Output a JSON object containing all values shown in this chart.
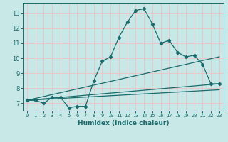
{
  "xlabel": "Humidex (Indice chaleur)",
  "ylabel": "",
  "xlim": [
    -0.5,
    23.5
  ],
  "ylim": [
    6.5,
    13.7
  ],
  "yticks": [
    7,
    8,
    9,
    10,
    11,
    12,
    13
  ],
  "xticks": [
    0,
    1,
    2,
    3,
    4,
    5,
    6,
    7,
    8,
    9,
    10,
    11,
    12,
    13,
    14,
    15,
    16,
    17,
    18,
    19,
    20,
    21,
    22,
    23
  ],
  "bg_color": "#c8e8e8",
  "grid_color": "#e8c8c8",
  "line_color": "#1a6b6b",
  "curve1_x": [
    0,
    1,
    2,
    3,
    4,
    5,
    6,
    7,
    8,
    9,
    10,
    11,
    12,
    13,
    14,
    15,
    16,
    17,
    18,
    19,
    20,
    21,
    22,
    23
  ],
  "curve1_y": [
    7.2,
    7.2,
    7.0,
    7.4,
    7.4,
    6.7,
    6.8,
    6.8,
    8.5,
    9.8,
    10.1,
    11.4,
    12.4,
    13.2,
    13.3,
    12.3,
    11.0,
    11.2,
    10.4,
    10.1,
    10.2,
    9.6,
    8.3,
    8.3
  ],
  "line1_x": [
    0,
    23
  ],
  "line1_y": [
    7.2,
    8.3
  ],
  "line2_x": [
    0,
    23
  ],
  "line2_y": [
    7.2,
    10.1
  ],
  "line3_x": [
    0,
    23
  ],
  "line3_y": [
    7.2,
    7.9
  ]
}
